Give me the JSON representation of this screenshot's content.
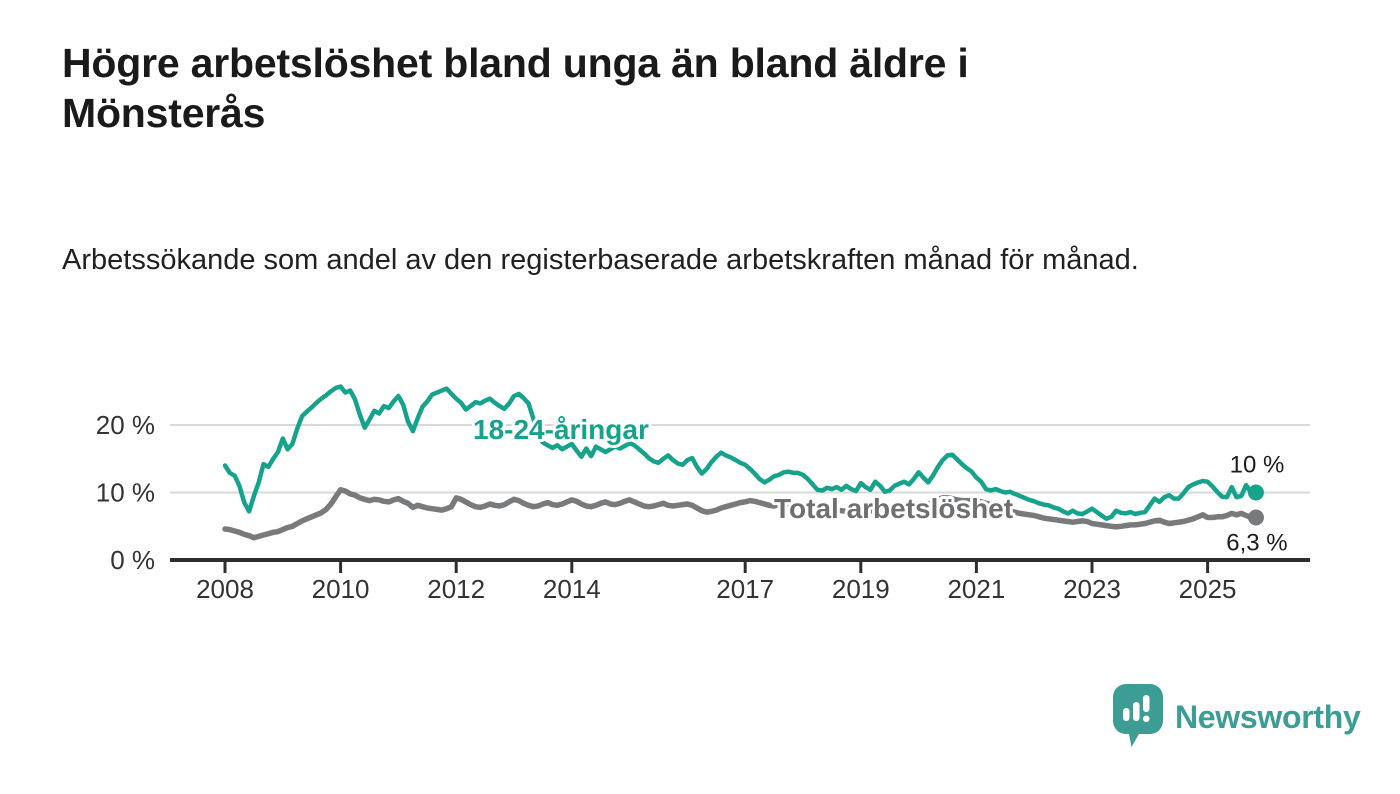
{
  "title": "Högre arbetslöshet bland unga än bland äldre i Mönsterås",
  "subtitle": "Arbetssökande som andel av den registerbaserade arbetskraften månad för månad.",
  "branding": {
    "logo_text": "Newsworthy",
    "logo_color": "#3c9d95",
    "logo_icon": "speech-bubble-bar-chart-icon"
  },
  "colors": {
    "young_series": "#16a38c",
    "total_series": "#797a7c",
    "total_label": "#6e6f71",
    "axis": "#2e2e2e",
    "gridline": "#d9d9d9",
    "tick_text": "#333333"
  },
  "chart_data": {
    "type": "line",
    "title": "Högre arbetslöshet bland unga än bland äldre i Mönsterås",
    "xlabel": "",
    "ylabel": "",
    "x_unit": "year-month (monthly observations)",
    "x_start": 2008.0,
    "x_step": 0.0833333,
    "ylim": [
      0,
      27.5
    ],
    "grid": "horizontal",
    "legend_position": "inline-on-line",
    "y_ticks": [
      {
        "v": 0,
        "label": "0 %"
      },
      {
        "v": 10,
        "label": "10 %"
      },
      {
        "v": 20,
        "label": "20 %"
      }
    ],
    "x_ticks": [
      {
        "v": 2008,
        "label": "2008"
      },
      {
        "v": 2010,
        "label": "2010"
      },
      {
        "v": 2012,
        "label": "2012"
      },
      {
        "v": 2014,
        "label": "2014"
      },
      {
        "v": 2017,
        "label": "2017"
      },
      {
        "v": 2019,
        "label": "2019"
      },
      {
        "v": 2021,
        "label": "2021"
      },
      {
        "v": 2023,
        "label": "2023"
      },
      {
        "v": 2025,
        "label": "2025"
      }
    ],
    "series": [
      {
        "name": "18-24-åringar",
        "color": "#16a38c",
        "end_label": "10 %",
        "end_value": 10.0,
        "values": [
          14.0,
          12.9,
          12.5,
          11.0,
          8.5,
          7.2,
          9.5,
          11.5,
          14.2,
          13.8,
          15.0,
          16.0,
          18.0,
          16.4,
          17.2,
          19.5,
          21.3,
          22.0,
          22.6,
          23.3,
          23.9,
          24.4,
          25.0,
          25.5,
          25.7,
          24.8,
          25.1,
          23.8,
          21.5,
          19.6,
          20.8,
          22.1,
          21.7,
          22.8,
          22.5,
          23.5,
          24.3,
          23.0,
          20.5,
          19.1,
          21.0,
          22.7,
          23.5,
          24.5,
          24.8,
          25.1,
          25.4,
          24.6,
          23.9,
          23.3,
          22.3,
          22.8,
          23.4,
          23.2,
          23.6,
          23.9,
          23.3,
          22.8,
          22.4,
          23.2,
          24.3,
          24.6,
          24.0,
          23.2,
          21.0,
          18.5,
          17.4,
          17.0,
          16.6,
          17.0,
          16.4,
          16.8,
          17.2,
          16.2,
          15.3,
          16.5,
          15.4,
          16.8,
          16.4,
          16.0,
          16.4,
          16.8,
          16.5,
          16.9,
          17.3,
          17.0,
          16.4,
          15.8,
          15.1,
          14.6,
          14.4,
          15.0,
          15.5,
          14.8,
          14.3,
          14.1,
          14.8,
          15.1,
          13.8,
          12.8,
          13.5,
          14.5,
          15.3,
          15.9,
          15.5,
          15.2,
          14.8,
          14.4,
          14.1,
          13.5,
          12.8,
          12.0,
          11.5,
          11.9,
          12.4,
          12.6,
          13.0,
          13.1,
          12.9,
          12.9,
          12.6,
          12.0,
          11.2,
          10.4,
          10.3,
          10.7,
          10.5,
          10.8,
          10.4,
          11.0,
          10.5,
          10.2,
          11.4,
          10.8,
          10.4,
          11.6,
          11.0,
          10.1,
          10.3,
          11.0,
          11.3,
          11.6,
          11.2,
          12.0,
          13.0,
          12.2,
          11.5,
          12.5,
          13.8,
          14.8,
          15.5,
          15.6,
          14.9,
          14.2,
          13.6,
          13.1,
          12.2,
          11.6,
          10.5,
          10.3,
          10.5,
          10.2,
          10.0,
          10.1,
          9.8,
          9.5,
          9.2,
          8.9,
          8.7,
          8.4,
          8.2,
          8.1,
          7.8,
          7.6,
          7.2,
          6.9,
          7.3,
          6.9,
          6.8,
          7.2,
          7.6,
          7.1,
          6.6,
          6.1,
          6.4,
          7.3,
          7.0,
          6.9,
          7.1,
          6.8,
          7.0,
          7.1,
          8.1,
          9.1,
          8.6,
          9.3,
          9.6,
          9.1,
          9.1,
          9.9,
          10.8,
          11.2,
          11.5,
          11.7,
          11.6,
          10.9,
          10.1,
          9.4,
          9.3,
          10.8,
          9.3,
          9.5,
          11.1,
          10.0
        ]
      },
      {
        "name": "Total arbetslöshet",
        "color": "#797a7c",
        "end_label": "6,3 %",
        "end_value": 6.3,
        "values": [
          4.6,
          4.5,
          4.3,
          4.1,
          3.8,
          3.6,
          3.3,
          3.5,
          3.7,
          3.9,
          4.1,
          4.2,
          4.5,
          4.8,
          5.0,
          5.4,
          5.8,
          6.1,
          6.4,
          6.7,
          7.0,
          7.5,
          8.3,
          9.4,
          10.4,
          10.2,
          9.8,
          9.6,
          9.2,
          9.0,
          8.8,
          9.0,
          8.9,
          8.7,
          8.6,
          8.9,
          9.1,
          8.7,
          8.4,
          7.8,
          8.1,
          7.9,
          7.7,
          7.6,
          7.5,
          7.4,
          7.6,
          7.9,
          9.2,
          9.0,
          8.6,
          8.2,
          7.9,
          7.8,
          8.0,
          8.3,
          8.1,
          8.0,
          8.2,
          8.6,
          9.0,
          8.8,
          8.4,
          8.1,
          7.9,
          8.0,
          8.3,
          8.5,
          8.2,
          8.1,
          8.3,
          8.6,
          8.9,
          8.7,
          8.3,
          8.0,
          7.9,
          8.1,
          8.4,
          8.6,
          8.3,
          8.2,
          8.4,
          8.7,
          8.9,
          8.6,
          8.3,
          8.0,
          7.9,
          8.0,
          8.2,
          8.4,
          8.1,
          8.0,
          8.1,
          8.2,
          8.3,
          8.1,
          7.7,
          7.3,
          7.1,
          7.2,
          7.4,
          7.7,
          7.9,
          8.1,
          8.3,
          8.5,
          8.6,
          8.8,
          8.7,
          8.5,
          8.3,
          8.1,
          8.0,
          8.2,
          8.0,
          7.9,
          7.8,
          8.0,
          8.2,
          8.0,
          7.8,
          7.6,
          7.4,
          7.3,
          7.3,
          7.4,
          7.3,
          7.2,
          7.2,
          7.4,
          7.6,
          7.5,
          7.3,
          7.2,
          7.1,
          7.2,
          7.3,
          7.4,
          7.3,
          7.3,
          7.4,
          7.6,
          7.8,
          7.9,
          8.2,
          8.7,
          9.0,
          9.2,
          9.2,
          9.1,
          8.9,
          8.8,
          8.8,
          8.8,
          8.8,
          8.6,
          8.4,
          8.2,
          8.0,
          7.8,
          7.5,
          7.3,
          7.1,
          6.9,
          6.8,
          6.7,
          6.6,
          6.4,
          6.2,
          6.1,
          6.0,
          5.9,
          5.8,
          5.7,
          5.6,
          5.7,
          5.8,
          5.7,
          5.4,
          5.3,
          5.2,
          5.1,
          5.0,
          4.9,
          5.0,
          5.1,
          5.2,
          5.2,
          5.3,
          5.4,
          5.6,
          5.8,
          5.9,
          5.6,
          5.4,
          5.5,
          5.6,
          5.7,
          5.9,
          6.1,
          6.4,
          6.7,
          6.3,
          6.3,
          6.4,
          6.4,
          6.6,
          6.9,
          6.7,
          6.9,
          6.6,
          6.3
        ]
      }
    ]
  }
}
